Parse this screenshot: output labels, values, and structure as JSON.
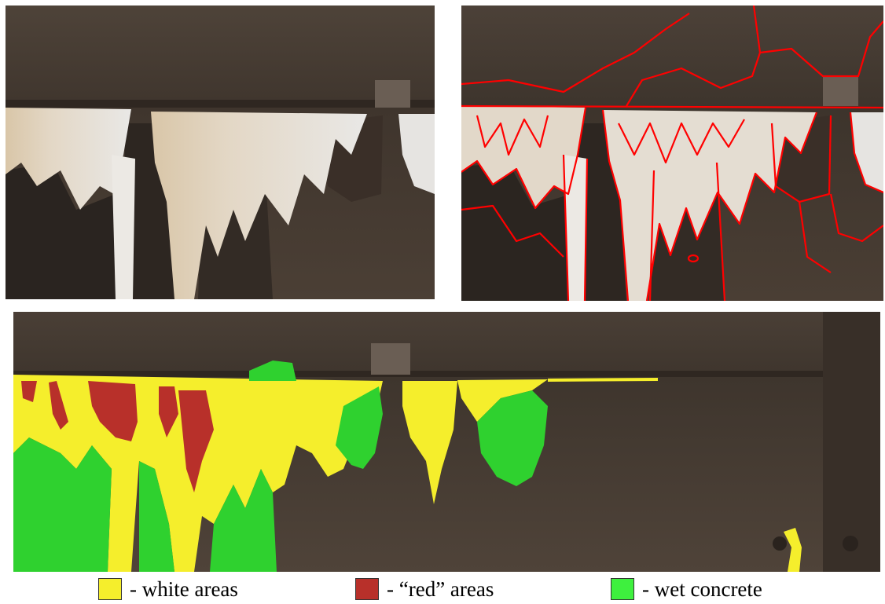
{
  "figure": {
    "panels": [
      {
        "id": "original",
        "description_kind": "photograph"
      },
      {
        "id": "segmented",
        "description_kind": "photograph-with-red-segment-boundaries"
      },
      {
        "id": "classified",
        "description_kind": "photograph-with-colored-classes"
      }
    ],
    "colors": {
      "concrete_dark": "#4a3f36",
      "concrete_mid": "#5e5147",
      "efflorescence_white": "#e8e6e2",
      "rust_tint": "#c9b49a",
      "segment_boundary": "#ff0000",
      "class_white": "#f5ee2c",
      "class_red": "#b8302a",
      "class_wet": "#2fd12f"
    }
  },
  "legend": {
    "items": [
      {
        "label": "- white areas",
        "color": "#f5ee2c"
      },
      {
        "label": "- “red” areas",
        "color": "#b8302a"
      },
      {
        "label": "- wet concrete",
        "color": "#3ef03e"
      }
    ]
  }
}
